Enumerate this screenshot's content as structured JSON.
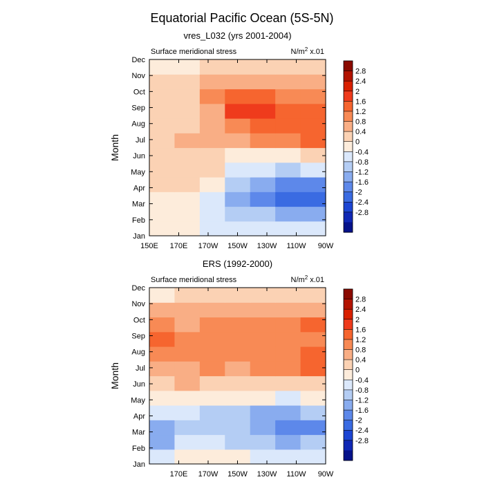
{
  "title": "Equatorial Pacific Ocean (5S-5N)",
  "colorbar": {
    "labels": [
      "2.8",
      "2.4",
      "2",
      "1.6",
      "1.2",
      "0.8",
      "0.4",
      "0",
      "-0.4",
      "-0.8",
      "-1.2",
      "-1.6",
      "-2",
      "-2.4",
      "-2.8"
    ],
    "colors": [
      "#8b0a00",
      "#b31300",
      "#d92000",
      "#ef3b1c",
      "#f6652f",
      "#f88a55",
      "#f9ae85",
      "#fbd2b4",
      "#fdecdb",
      "#dbe8fb",
      "#b4cdf4",
      "#89acef",
      "#5d88ea",
      "#3a6be2",
      "#1c45d3",
      "#1028b5",
      "#06128a"
    ]
  },
  "chart_data": [
    {
      "type": "heatmap",
      "subtitle": "vres_L032 (yrs 2001-2004)",
      "left_label": "Surface meridional stress",
      "units_prefix": "N/m",
      "units_exp": "2",
      "units_suffix": " x.01",
      "ylabel": "Month",
      "yticks": [
        "Jan",
        "Feb",
        "Mar",
        "Apr",
        "May",
        "Jun",
        "Jul",
        "Aug",
        "Sep",
        "Oct",
        "Nov",
        "Dec"
      ],
      "xticks": [
        "150E",
        "170E",
        "170W",
        "150W",
        "130W",
        "110W",
        "90W"
      ],
      "xlim": [
        150,
        270
      ],
      "xtick_values": [
        150,
        170,
        190,
        210,
        230,
        250,
        270
      ],
      "rows": [
        {
          "month": "Jan",
          "values": [
            -0.4,
            -0.5,
            -0.6,
            -0.7,
            -0.8,
            -0.8,
            -0.7
          ]
        },
        {
          "month": "Feb",
          "values": [
            -0.3,
            -0.4,
            -0.7,
            -1.0,
            -1.3,
            -1.5,
            -1.4
          ]
        },
        {
          "month": "Mar",
          "values": [
            -0.2,
            -0.3,
            -0.6,
            -1.4,
            -1.8,
            -2.2,
            -2.4
          ]
        },
        {
          "month": "Apr",
          "values": [
            0.1,
            0.0,
            -0.2,
            -1.0,
            -1.6,
            -1.8,
            -1.8
          ]
        },
        {
          "month": "May",
          "values": [
            0.2,
            0.2,
            0.1,
            -0.6,
            -0.9,
            -1.0,
            -0.9
          ]
        },
        {
          "month": "Jun",
          "values": [
            0.2,
            0.2,
            0.1,
            -0.2,
            -0.3,
            -0.2,
            0.2
          ]
        },
        {
          "month": "Jul",
          "values": [
            0.2,
            0.3,
            0.4,
            0.6,
            0.8,
            0.9,
            1.1
          ]
        },
        {
          "month": "Aug",
          "values": [
            0.2,
            0.2,
            0.6,
            1.0,
            1.3,
            1.3,
            1.3
          ]
        },
        {
          "month": "Sep",
          "values": [
            0.2,
            0.2,
            0.6,
            1.5,
            1.7,
            1.4,
            1.2
          ]
        },
        {
          "month": "Oct",
          "values": [
            0.2,
            0.2,
            0.7,
            1.1,
            1.2,
            1.0,
            0.9
          ]
        },
        {
          "month": "Nov",
          "values": [
            0.1,
            0.2,
            0.4,
            0.5,
            0.5,
            0.5,
            0.5
          ]
        },
        {
          "month": "Dec",
          "values": [
            -0.5,
            -0.2,
            0.1,
            0.2,
            0.2,
            0.2,
            0.2
          ]
        }
      ]
    },
    {
      "type": "heatmap",
      "subtitle": "ERS (1992-2000)",
      "left_label": "Surface meridional stress",
      "units_prefix": "N/m",
      "units_exp": "2",
      "units_suffix": " x.01",
      "ylabel": "Month",
      "yticks": [
        "Jan",
        "Feb",
        "Mar",
        "Apr",
        "May",
        "Jun",
        "Jul",
        "Aug",
        "Sep",
        "Oct",
        "Nov",
        "Dec"
      ],
      "xticks": [
        "170E",
        "170W",
        "150W",
        "130W",
        "110W",
        "90W"
      ],
      "xlim": [
        150,
        270
      ],
      "xtick_values": [
        170,
        190,
        210,
        230,
        250,
        270
      ],
      "rows": [
        {
          "month": "Jan",
          "values": [
            -0.6,
            -0.4,
            -0.5,
            -0.4,
            -0.6,
            -0.7,
            -0.6
          ]
        },
        {
          "month": "Feb",
          "values": [
            -1.4,
            -0.9,
            -0.9,
            -1.0,
            -1.2,
            -1.4,
            -1.3
          ]
        },
        {
          "month": "Mar",
          "values": [
            -1.6,
            -1.2,
            -1.2,
            -1.3,
            -1.7,
            -1.9,
            -1.8
          ]
        },
        {
          "month": "Apr",
          "values": [
            -0.9,
            -0.9,
            -1.0,
            -1.1,
            -1.4,
            -1.5,
            -1.3
          ]
        },
        {
          "month": "May",
          "values": [
            -0.4,
            -0.3,
            -0.4,
            -0.3,
            -0.5,
            -0.6,
            -0.4
          ]
        },
        {
          "month": "Jun",
          "values": [
            0.2,
            0.3,
            0.2,
            0.2,
            0.2,
            0.1,
            0.2
          ]
        },
        {
          "month": "Jul",
          "values": [
            0.6,
            0.5,
            0.7,
            0.6,
            0.7,
            0.8,
            1.2
          ]
        },
        {
          "month": "Aug",
          "values": [
            0.9,
            0.7,
            0.8,
            0.7,
            0.8,
            0.9,
            1.3
          ]
        },
        {
          "month": "Sep",
          "values": [
            1.2,
            0.8,
            0.9,
            0.9,
            0.8,
            0.9,
            1.0
          ]
        },
        {
          "month": "Oct",
          "values": [
            0.8,
            0.6,
            0.8,
            0.8,
            0.7,
            0.8,
            1.3
          ]
        },
        {
          "month": "Nov",
          "values": [
            0.4,
            0.4,
            0.5,
            0.5,
            0.4,
            0.4,
            0.6
          ]
        },
        {
          "month": "Dec",
          "values": [
            -0.2,
            0.0,
            0.0,
            0.1,
            0.0,
            0.0,
            0.1
          ]
        }
      ]
    }
  ]
}
